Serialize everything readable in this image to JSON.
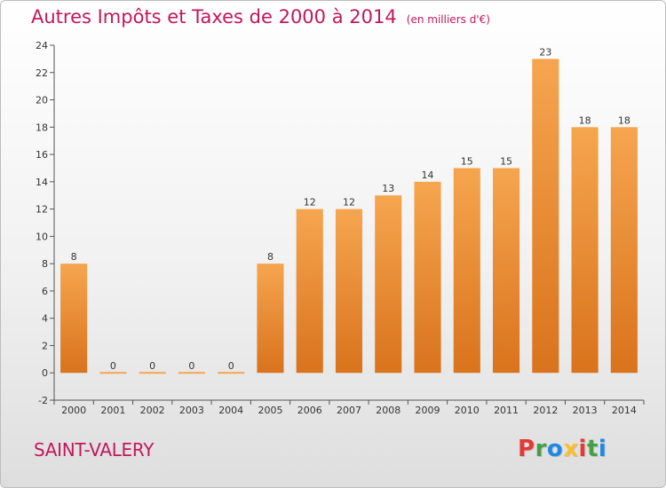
{
  "header": {
    "title": "Autres Impôts et Taxes de 2000 à 2014",
    "subtitle": "(en milliers d'€)"
  },
  "footer": {
    "city": "SAINT-VALERY",
    "logo_text": "Proxiti",
    "logo_colors": [
      "#e53935",
      "#43a047",
      "#1e88e5",
      "#fbc02d",
      "#e53935",
      "#43a047",
      "#1e88e5"
    ]
  },
  "colors": {
    "title": "#c2185b",
    "bar_top": "#f6a54f",
    "bar_bottom": "#d9731c",
    "axis": "#555555",
    "grid": "#cfcfcf"
  },
  "chart_data": {
    "type": "bar",
    "title": "Autres Impôts et Taxes de 2000 à 2014",
    "subtitle": "(en milliers d'€)",
    "xlabel": "",
    "ylabel": "",
    "categories": [
      "2000",
      "2001",
      "2002",
      "2003",
      "2004",
      "2005",
      "2006",
      "2007",
      "2008",
      "2009",
      "2010",
      "2011",
      "2012",
      "2013",
      "2014"
    ],
    "values": [
      8,
      0,
      0,
      0,
      0,
      8,
      12,
      12,
      13,
      14,
      15,
      15,
      23,
      18,
      18
    ],
    "data_labels": [
      "8",
      "0",
      "0",
      "0",
      "0",
      "8",
      "12",
      "12",
      "13",
      "14",
      "15",
      "15",
      "23",
      "18",
      "18"
    ],
    "yticks": [
      -2,
      0,
      2,
      4,
      6,
      8,
      10,
      12,
      14,
      16,
      18,
      20,
      22,
      24
    ],
    "ylim": [
      -2,
      24
    ],
    "grid": false,
    "legend": "none"
  }
}
